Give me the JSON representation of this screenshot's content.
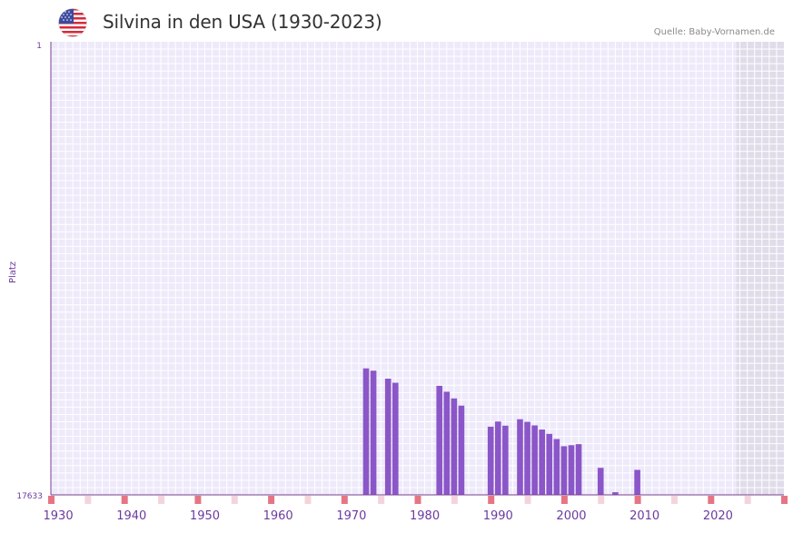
{
  "header": {
    "title": "Silvina in den USA (1930-2023)",
    "source": "Quelle: Baby-Vornamen.de",
    "flag_icon": "us-flag-icon"
  },
  "colors": {
    "bar": "#8b56c8",
    "axis": "#7a3f8e",
    "plot_bg": "#eeeafa",
    "grid": "#ffffff",
    "future_bg": "#e0dcea",
    "tick_text": "#6b3aa0",
    "decade_marker": "#e57585",
    "half_decade_marker": "#f4d4dc"
  },
  "chart_data": {
    "type": "bar",
    "title": "Silvina in den USA (1930-2023)",
    "xlabel": "",
    "ylabel": "Platz",
    "y_axis_inverted": true,
    "ylim": [
      1,
      17633
    ],
    "y_ticks": [
      "1",
      "17633"
    ],
    "x_range": [
      1929,
      2029
    ],
    "x_ticks": [
      1930,
      1940,
      1950,
      1960,
      1970,
      1980,
      1990,
      2000,
      2010,
      2020
    ],
    "x_tick_labels": [
      "1930",
      "1940",
      "1950",
      "1960",
      "1970",
      "1980",
      "1990",
      "2000",
      "2010",
      "2020"
    ],
    "future_from_year": 2023,
    "series": [
      {
        "name": "Platz",
        "points": [
          {
            "year": 1972,
            "rank": 12710
          },
          {
            "year": 1973,
            "rank": 12800
          },
          {
            "year": 1975,
            "rank": 13110
          },
          {
            "year": 1976,
            "rank": 13270
          },
          {
            "year": 1982,
            "rank": 13390
          },
          {
            "year": 1983,
            "rank": 13620
          },
          {
            "year": 1984,
            "rank": 13880
          },
          {
            "year": 1985,
            "rank": 14160
          },
          {
            "year": 1989,
            "rank": 14980
          },
          {
            "year": 1990,
            "rank": 14780
          },
          {
            "year": 1991,
            "rank": 14940
          },
          {
            "year": 1993,
            "rank": 14690
          },
          {
            "year": 1994,
            "rank": 14790
          },
          {
            "year": 1995,
            "rank": 14930
          },
          {
            "year": 1996,
            "rank": 15090
          },
          {
            "year": 1997,
            "rank": 15260
          },
          {
            "year": 1998,
            "rank": 15460
          },
          {
            "year": 1999,
            "rank": 15740
          },
          {
            "year": 2000,
            "rank": 15700
          },
          {
            "year": 2001,
            "rank": 15660
          },
          {
            "year": 2004,
            "rank": 16580
          },
          {
            "year": 2006,
            "rank": 17530
          },
          {
            "year": 2009,
            "rank": 16660
          }
        ]
      }
    ]
  }
}
